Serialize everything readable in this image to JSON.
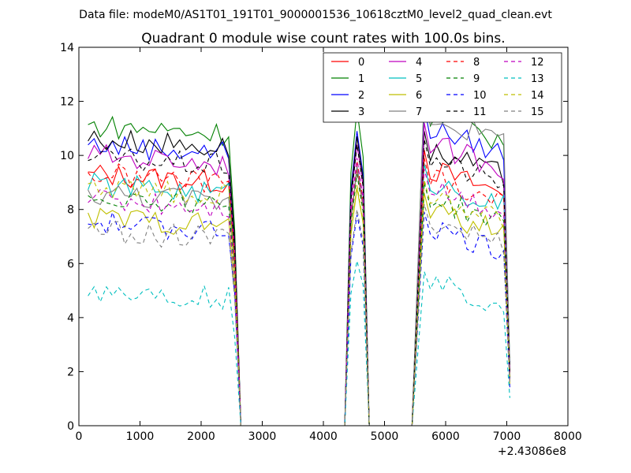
{
  "chart_data": {
    "type": "line",
    "suptitle": "Data file: modeM0/AS1T01_191T01_9000001536_10618cztM0_level2_quad_clean.evt",
    "title": "Quadrant 0 module wise count rates with 100.0s bins.",
    "xlabel": "",
    "ylabel": "",
    "xlim": [
      0,
      8000
    ],
    "ylim": [
      0,
      14
    ],
    "xticks": [
      0,
      1000,
      2000,
      3000,
      4000,
      5000,
      6000,
      7000,
      8000
    ],
    "yticks": [
      0,
      2,
      4,
      6,
      8,
      10,
      12,
      14
    ],
    "x_offset_label": "+2.43086e8",
    "grid": false,
    "legend_position": "top-right",
    "segments": [
      {
        "start": 150,
        "end": 2650,
        "rise": 0,
        "kind": "plateau"
      },
      {
        "start": 4350,
        "end": 4750,
        "rise": 4450,
        "kind": "spike"
      },
      {
        "start": 5450,
        "end": 7050,
        "rise": 5650,
        "kind": "plateau"
      }
    ],
    "series": [
      {
        "name": "0",
        "color": "#ff0000",
        "dash": "solid",
        "base": 9.3,
        "peak": 9.5,
        "pass3": 10.2
      },
      {
        "name": "1",
        "color": "#008000",
        "dash": "solid",
        "base": 11.1,
        "peak": 11.7,
        "pass3": 12.3
      },
      {
        "name": "2",
        "color": "#0000ff",
        "dash": "solid",
        "base": 10.4,
        "peak": 10.9,
        "pass3": 11.8
      },
      {
        "name": "3",
        "color": "#000000",
        "dash": "solid",
        "base": 10.6,
        "peak": 10.7,
        "pass3": 10.9
      },
      {
        "name": "4",
        "color": "#bf00bf",
        "dash": "solid",
        "base": 10.0,
        "peak": 10.4,
        "pass3": 11.2
      },
      {
        "name": "5",
        "color": "#00bfbf",
        "dash": "solid",
        "base": 8.9,
        "peak": 9.6,
        "pass3": 9.7
      },
      {
        "name": "6",
        "color": "#bfbf00",
        "dash": "solid",
        "base": 7.7,
        "peak": 8.8,
        "pass3": 8.6
      },
      {
        "name": "7",
        "color": "#808080",
        "dash": "solid",
        "base": 8.6,
        "peak": 9.6,
        "pass3": 12.3
      },
      {
        "name": "8",
        "color": "#ff0000",
        "dash": "dashed",
        "base": 9.3,
        "peak": 9.8,
        "pass3": 9.9
      },
      {
        "name": "9",
        "color": "#008000",
        "dash": "dashed",
        "base": 8.5,
        "peak": 9.3,
        "pass3": 9.0
      },
      {
        "name": "10",
        "color": "#0000ff",
        "dash": "dashed",
        "base": 7.5,
        "peak": 7.8,
        "pass3": 7.9
      },
      {
        "name": "11",
        "color": "#000000",
        "dash": "dashed",
        "base": 9.9,
        "peak": 10.4,
        "pass3": 10.6
      },
      {
        "name": "12",
        "color": "#bf00bf",
        "dash": "dashed",
        "base": 8.4,
        "peak": 9.9,
        "pass3": 9.5
      },
      {
        "name": "13",
        "color": "#00bfbf",
        "dash": "dashed",
        "base": 5.0,
        "peak": 6.1,
        "pass3": 5.7
      },
      {
        "name": "14",
        "color": "#bfbf00",
        "dash": "dashed",
        "base": 8.8,
        "peak": 8.9,
        "pass3": 9.1
      },
      {
        "name": "15",
        "color": "#808080",
        "dash": "dashed",
        "base": 7.2,
        "peak": 8.0,
        "pass3": 8.2
      }
    ]
  }
}
